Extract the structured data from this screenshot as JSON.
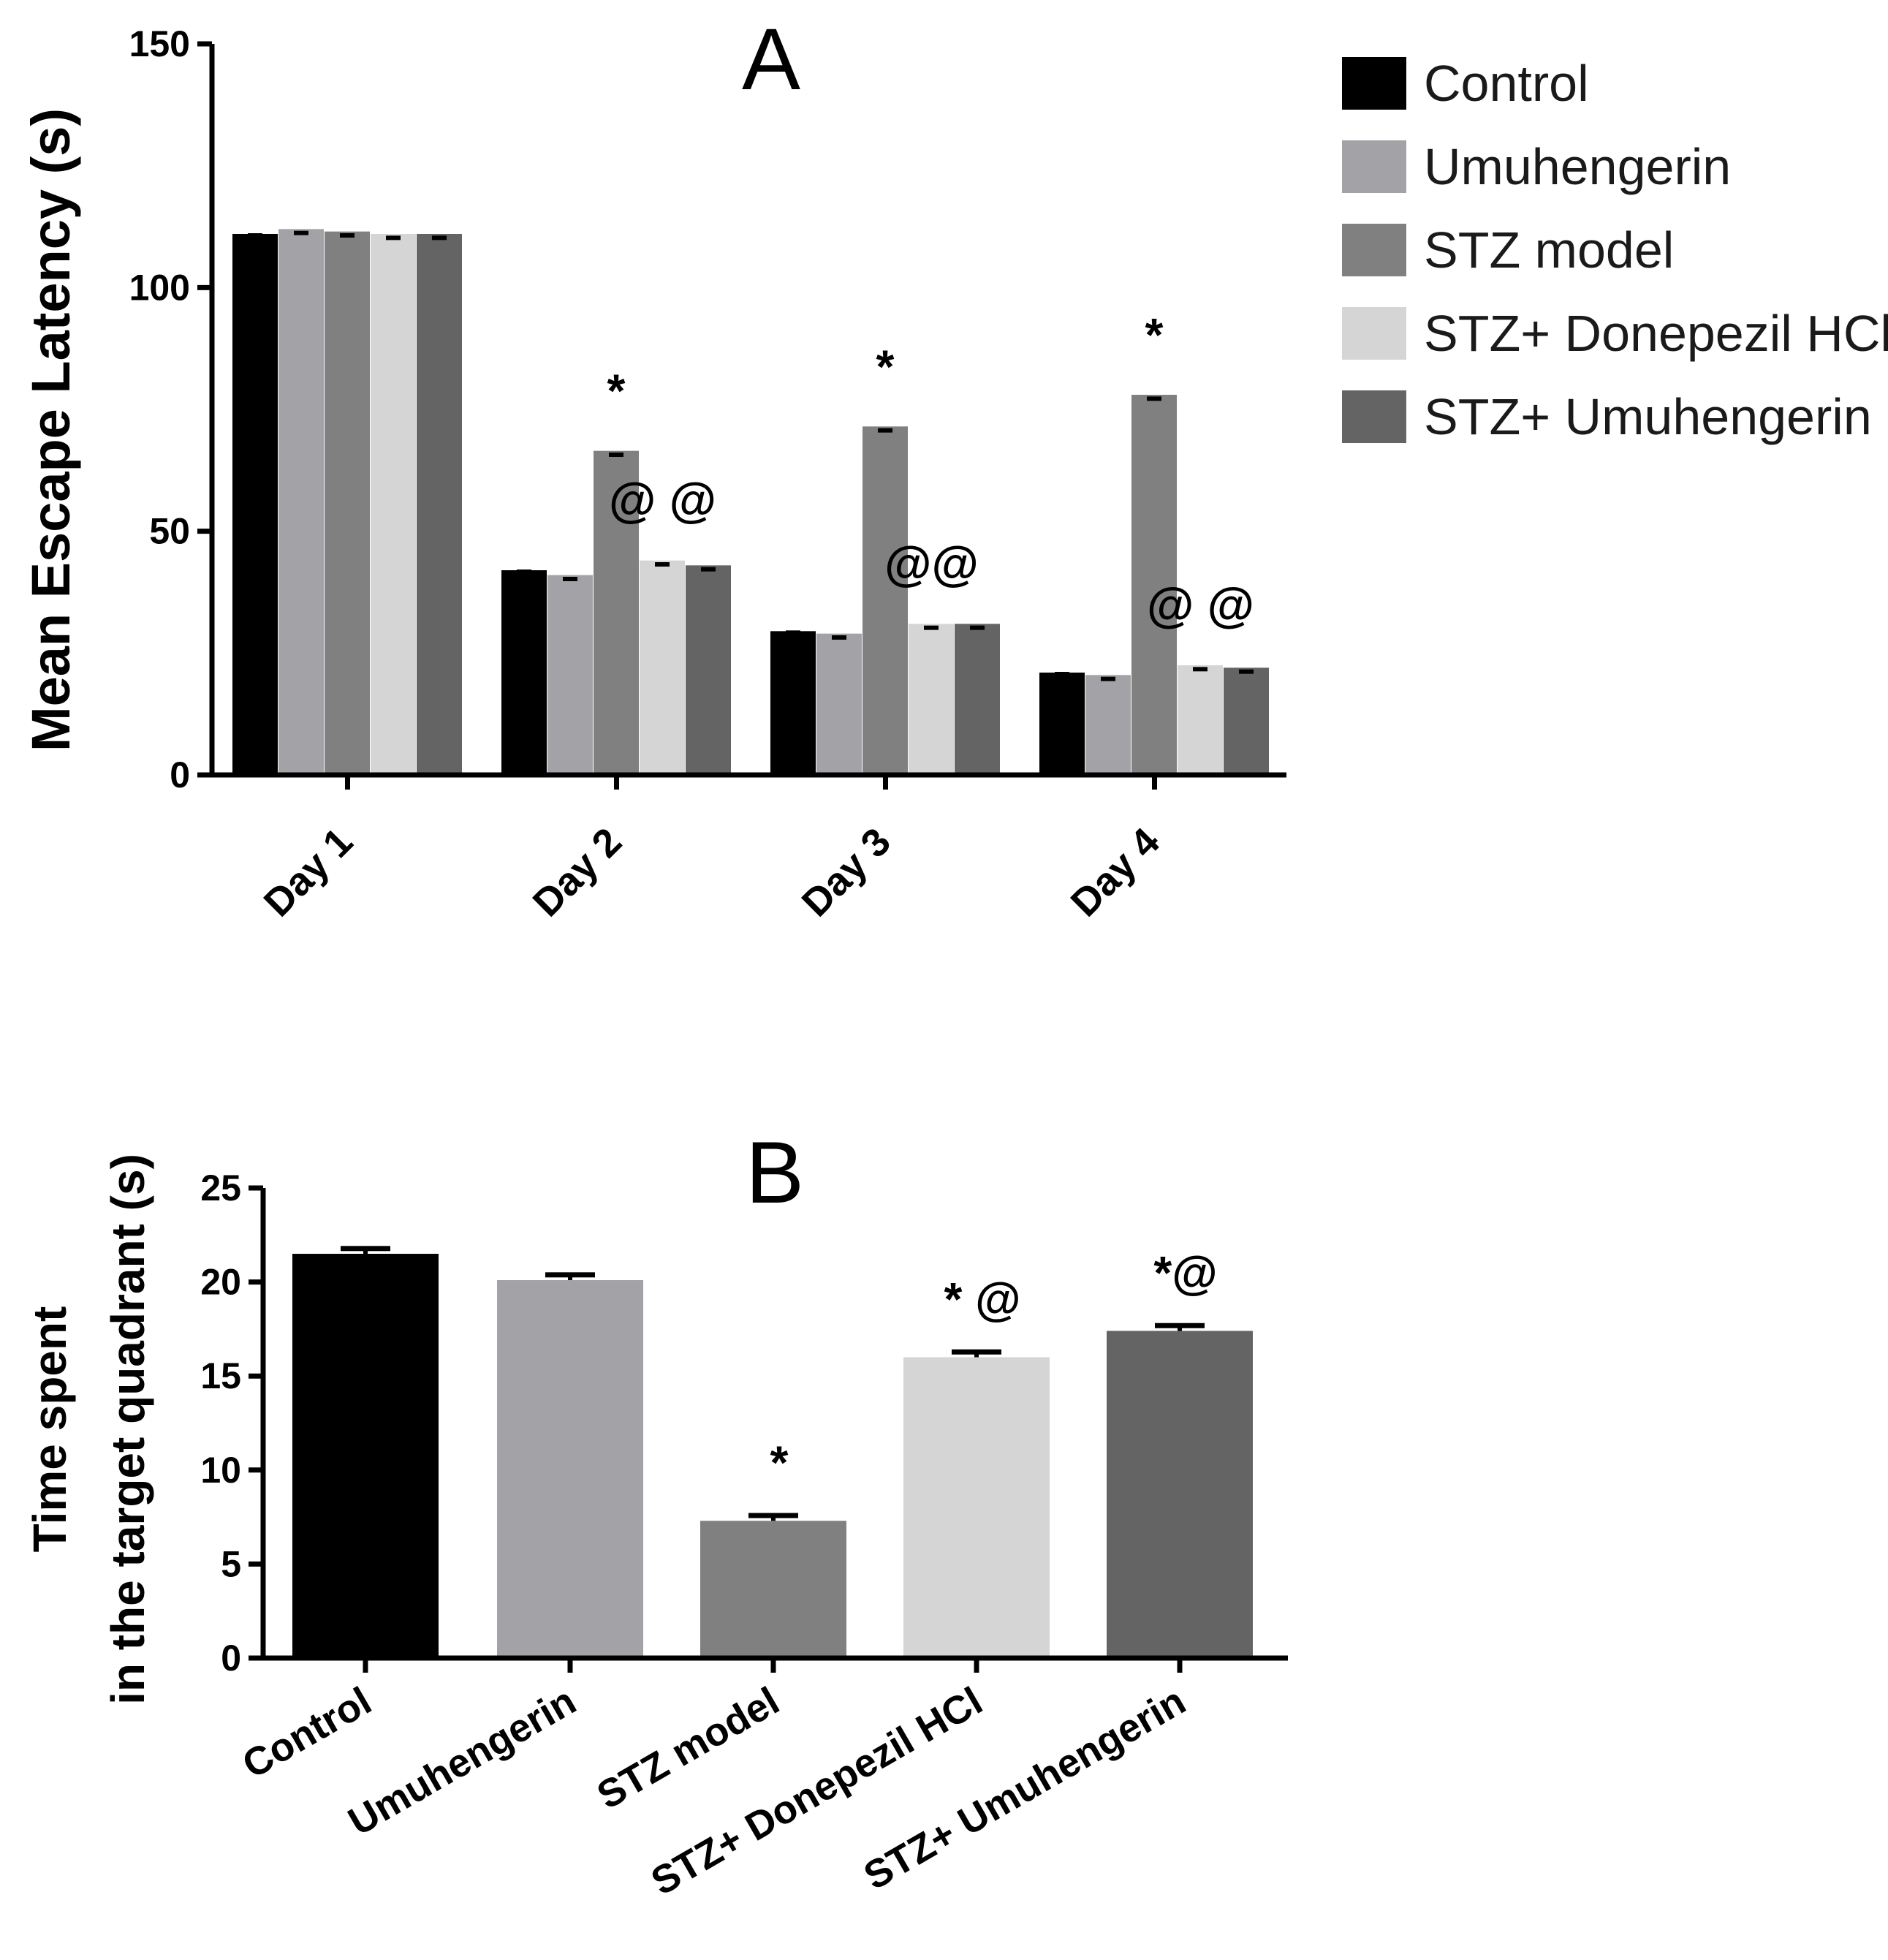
{
  "chart_data": [
    {
      "type": "bar",
      "panel": "A",
      "categories": [
        "Day 1",
        "Day 2",
        "Day 3",
        "Day 4"
      ],
      "series": [
        {
          "name": "Control",
          "color": "#000000",
          "values": [
            111,
            42,
            29.5,
            21
          ],
          "errors": [
            0.3,
            0.3,
            0.3,
            0.3
          ]
        },
        {
          "name": "Umuhengerin",
          "color": "#a3a3a7",
          "values": [
            112,
            41,
            29,
            20.5
          ],
          "errors": [
            0.8,
            0.8,
            0.8,
            0.8
          ]
        },
        {
          "name": "STZ model",
          "color": "#808080",
          "values": [
            111.5,
            66.5,
            71.5,
            78
          ],
          "errors": [
            0.8,
            0.8,
            0.8,
            0.8
          ]
        },
        {
          "name": "STZ+ Donepezil HCl",
          "color": "#d5d5d5",
          "values": [
            111,
            44,
            31,
            22.5
          ],
          "errors": [
            0.8,
            0.8,
            0.8,
            0.8
          ]
        },
        {
          "name": "STZ+ Umuhengerin",
          "color": "#646464",
          "values": [
            111,
            43,
            31,
            22
          ],
          "errors": [
            0.8,
            0.8,
            0.8,
            0.8
          ]
        }
      ],
      "annotations": [
        {
          "category": "Day 2",
          "series": "STZ model",
          "text": "*"
        },
        {
          "category": "Day 2",
          "series": "STZ+ Donepezil HCl",
          "text": "@ @"
        },
        {
          "category": "Day 3",
          "series": "STZ model",
          "text": "*"
        },
        {
          "category": "Day 3",
          "series": "STZ+ Donepezil HCl",
          "text": "@@"
        },
        {
          "category": "Day 4",
          "series": "STZ model",
          "text": "*"
        },
        {
          "category": "Day 4",
          "series": "STZ+ Donepezil HCl",
          "text": "@ @"
        }
      ],
      "title": "A",
      "xlabel": "",
      "ylabel": "Mean Escape Latency (s)",
      "ylim": [
        0,
        150
      ],
      "yticks": [
        0,
        50,
        100,
        150
      ],
      "legend": "right"
    },
    {
      "type": "bar",
      "panel": "B",
      "categories": [
        "Control",
        "Umuhengerin",
        "STZ model",
        "STZ+ Donepezil HCl",
        "STZ+ Umuhengerin"
      ],
      "colors": [
        "#000000",
        "#a3a3a7",
        "#808080",
        "#d5d5d5",
        "#646464"
      ],
      "values": [
        21.5,
        20.1,
        7.3,
        16.0,
        17.4
      ],
      "errors": [
        0.3,
        0.3,
        0.3,
        0.3,
        0.3
      ],
      "annotations": [
        "",
        "",
        "*",
        "* @",
        "*@"
      ],
      "title": "B",
      "xlabel": "",
      "ylabel": [
        "Time spent",
        "in the target quadrant (s)"
      ],
      "ylim": [
        0,
        25
      ],
      "yticks": [
        0,
        5,
        10,
        15,
        20,
        25
      ]
    }
  ]
}
